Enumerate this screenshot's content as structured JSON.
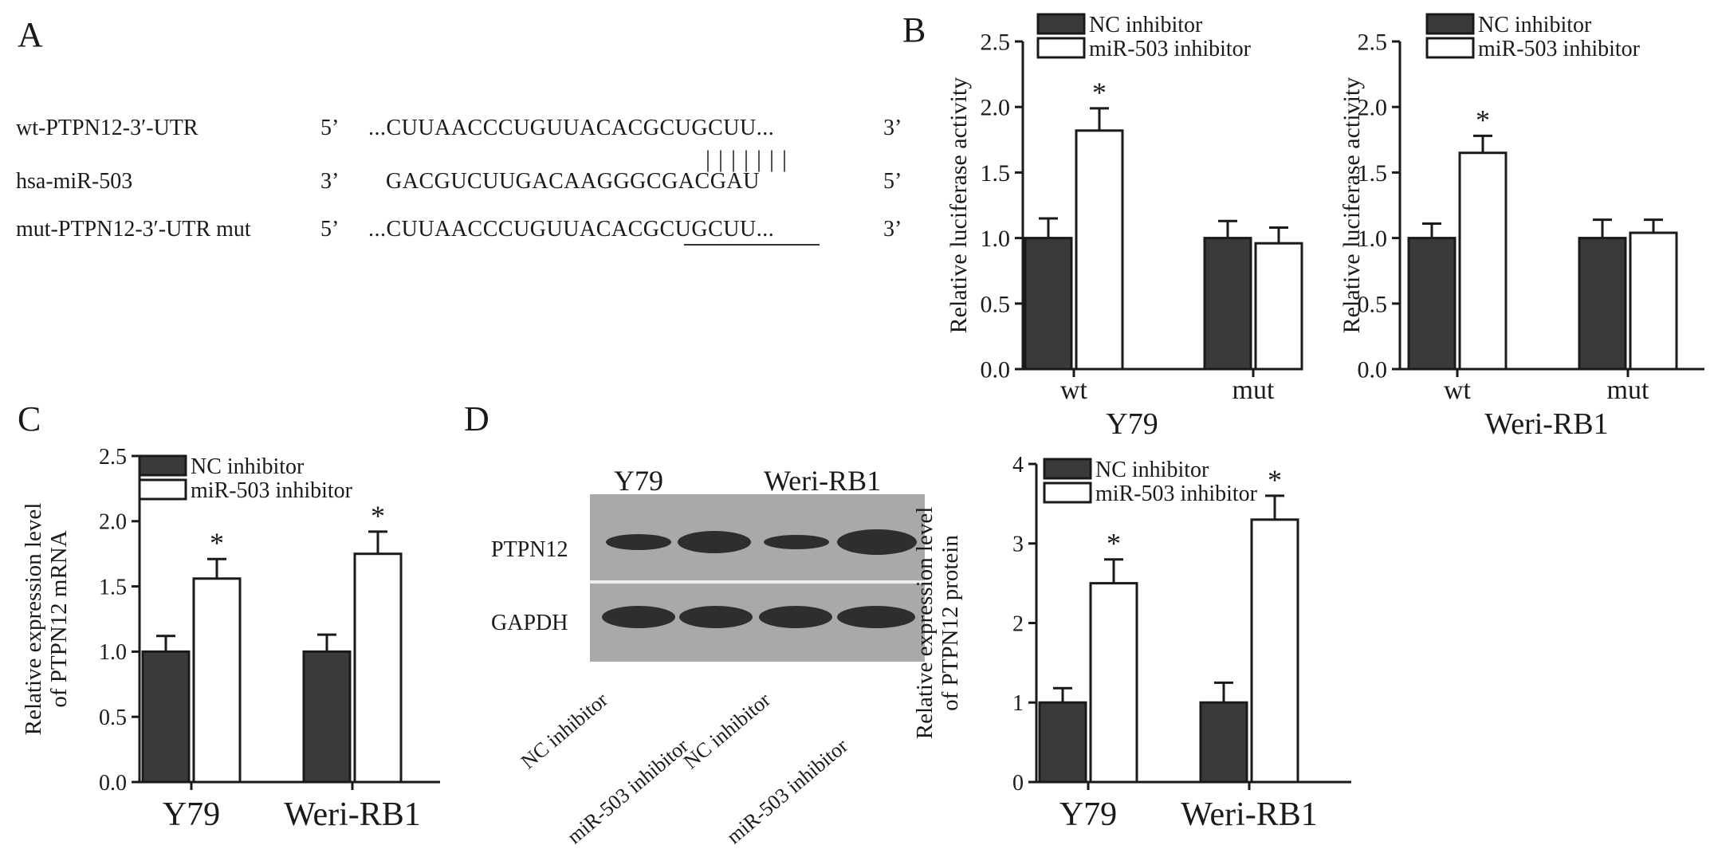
{
  "panel_labels": {
    "a": "A",
    "b": "B",
    "c": "C",
    "d": "D"
  },
  "sequences": [
    {
      "name": "wt-PTPN12-3′-UTR",
      "prime_left": "5’",
      "seq": "...CUUAACCCUGUUACACGCUGCUU...",
      "prime_right": "3’"
    },
    {
      "name": "hsa-miR-503",
      "prime_left": "3’",
      "seq": "GACGUCUUGACAAGGGCGACGAU",
      "prime_right": "5’"
    },
    {
      "name": "mut-PTPN12-3′-UTR mut",
      "prime_left": "5’",
      "seq": "...CUUAACCCUGUUACACGCUGCUU...",
      "prime_right": "3’"
    }
  ],
  "pairing_marks": "|||||||",
  "blot": {
    "groups": [
      "Y79",
      "Weri-RB1"
    ],
    "rows": [
      "PTPN12",
      "GAPDH"
    ],
    "lanes": [
      "NC inhibitor",
      "miR-503 inhibitor",
      "NC inhibitor",
      "miR-503 inhibitor"
    ]
  },
  "colors": {
    "nc": "#3a3a3a",
    "mir": "#ffffff",
    "axis": "#1a1a1a"
  },
  "chart_data": [
    {
      "id": "B-left",
      "type": "bar",
      "ylabel": "Relative luciferase activity",
      "group_title": "Y79",
      "categories": [
        "wt",
        "mut"
      ],
      "ylim": [
        0,
        2.5
      ],
      "yticks": [
        "0.0",
        "0.5",
        "1.0",
        "1.5",
        "2.0",
        "2.5"
      ],
      "series": [
        {
          "name": "NC inhibitor",
          "values": [
            1.0,
            1.0
          ],
          "errors": [
            0.15,
            0.13
          ]
        },
        {
          "name": "miR-503 inhibitor",
          "values": [
            1.82,
            0.96
          ],
          "errors": [
            0.17,
            0.12
          ]
        }
      ],
      "significance": [
        {
          "series": 1,
          "category": 0,
          "mark": "*"
        }
      ],
      "legend": "top-left"
    },
    {
      "id": "B-right",
      "type": "bar",
      "ylabel": "Relative luciferase activity",
      "group_title": "Weri-RB1",
      "categories": [
        "wt",
        "mut"
      ],
      "ylim": [
        0,
        2.5
      ],
      "yticks": [
        "0.0",
        "0.5",
        "1.0",
        "1.5",
        "2.0",
        "2.5"
      ],
      "series": [
        {
          "name": "NC inhibitor",
          "values": [
            1.0,
            1.0
          ],
          "errors": [
            0.11,
            0.14
          ]
        },
        {
          "name": "miR-503 inhibitor",
          "values": [
            1.65,
            1.04
          ],
          "errors": [
            0.13,
            0.1
          ]
        }
      ],
      "significance": [
        {
          "series": 1,
          "category": 0,
          "mark": "*"
        }
      ],
      "legend": "top-left"
    },
    {
      "id": "C",
      "type": "bar",
      "ylabel": "Relative expression level of PTPN12 mRNA",
      "categories": [
        "Y79",
        "Weri-RB1"
      ],
      "ylim": [
        0,
        2.5
      ],
      "yticks": [
        "0.0",
        "0.5",
        "1.0",
        "1.5",
        "2.0",
        "2.5"
      ],
      "series": [
        {
          "name": "NC inhibitor",
          "values": [
            1.0,
            1.0
          ],
          "errors": [
            0.12,
            0.13
          ]
        },
        {
          "name": "miR-503 inhibitor",
          "values": [
            1.56,
            1.75
          ],
          "errors": [
            0.15,
            0.17
          ]
        }
      ],
      "significance": [
        {
          "series": 1,
          "category": 0,
          "mark": "*"
        },
        {
          "series": 1,
          "category": 1,
          "mark": "*"
        }
      ],
      "legend": "top-left"
    },
    {
      "id": "D",
      "type": "bar",
      "ylabel": "Relative expression level of PTPN12 protein",
      "categories": [
        "Y79",
        "Weri-RB1"
      ],
      "ylim": [
        0,
        4
      ],
      "yticks": [
        "0",
        "1",
        "2",
        "3",
        "4"
      ],
      "series": [
        {
          "name": "NC inhibitor",
          "values": [
            1.0,
            1.0
          ],
          "errors": [
            0.18,
            0.25
          ]
        },
        {
          "name": "miR-503 inhibitor",
          "values": [
            2.5,
            3.3
          ],
          "errors": [
            0.3,
            0.3
          ]
        }
      ],
      "significance": [
        {
          "series": 1,
          "category": 0,
          "mark": "*"
        },
        {
          "series": 1,
          "category": 1,
          "mark": "*"
        }
      ],
      "legend": "top-left"
    }
  ]
}
